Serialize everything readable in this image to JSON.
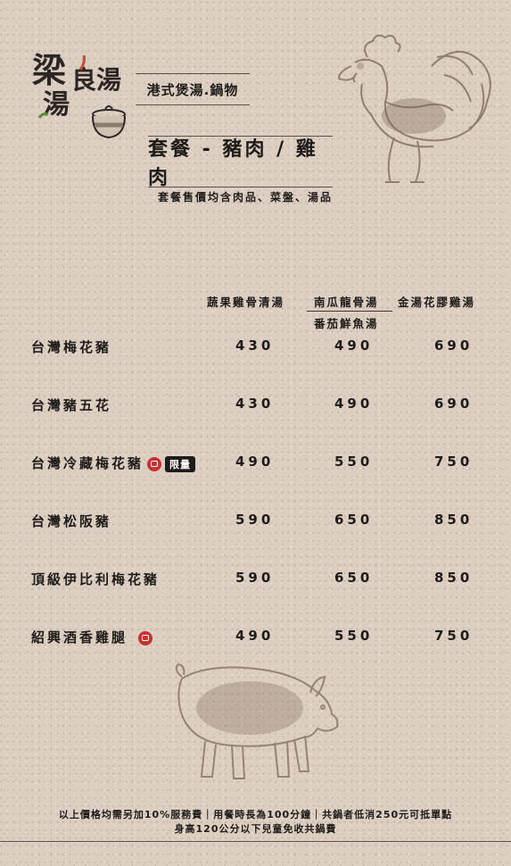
{
  "brand": {
    "logo_chars": [
      "梁",
      "良",
      "湯",
      "湯"
    ],
    "subtitle": "港式煲湯.鍋物"
  },
  "section": {
    "title": "套餐 - 豬肉 / 雞肉",
    "note": "套餐售價均含肉品、菜盤、湯品"
  },
  "columns": {
    "col1": "蔬果雞骨清湯",
    "col2": "南瓜龍骨湯",
    "col2_alt": "番茄鮮魚湯",
    "col3": "金湯花膠雞湯"
  },
  "rows": [
    {
      "name": "台灣梅花豬",
      "p1": "430",
      "p2": "490",
      "p3": "690"
    },
    {
      "name": "台灣豬五花",
      "p1": "430",
      "p2": "490",
      "p3": "690"
    },
    {
      "name": "台灣冷藏梅花豬",
      "badge": "限量",
      "p1": "490",
      "p2": "550",
      "p3": "750"
    },
    {
      "name": "台灣松阪豬",
      "p1": "590",
      "p2": "650",
      "p3": "850"
    },
    {
      "name": "頂級伊比利梅花豬",
      "p1": "590",
      "p2": "650",
      "p3": "850"
    },
    {
      "name": "紹興酒香雞腿",
      "p1": "490",
      "p2": "550",
      "p3": "750"
    }
  ],
  "footer": {
    "line1": "以上價格均需另加10%服務費｜用餐時長為100分鐘｜共鍋者低消250元可抵單點",
    "line2": "身高120公分以下兒童免收共鍋費"
  },
  "colors": {
    "background": "#dccfc1",
    "accent_red": "#c93030",
    "text": "#1e1b19"
  }
}
